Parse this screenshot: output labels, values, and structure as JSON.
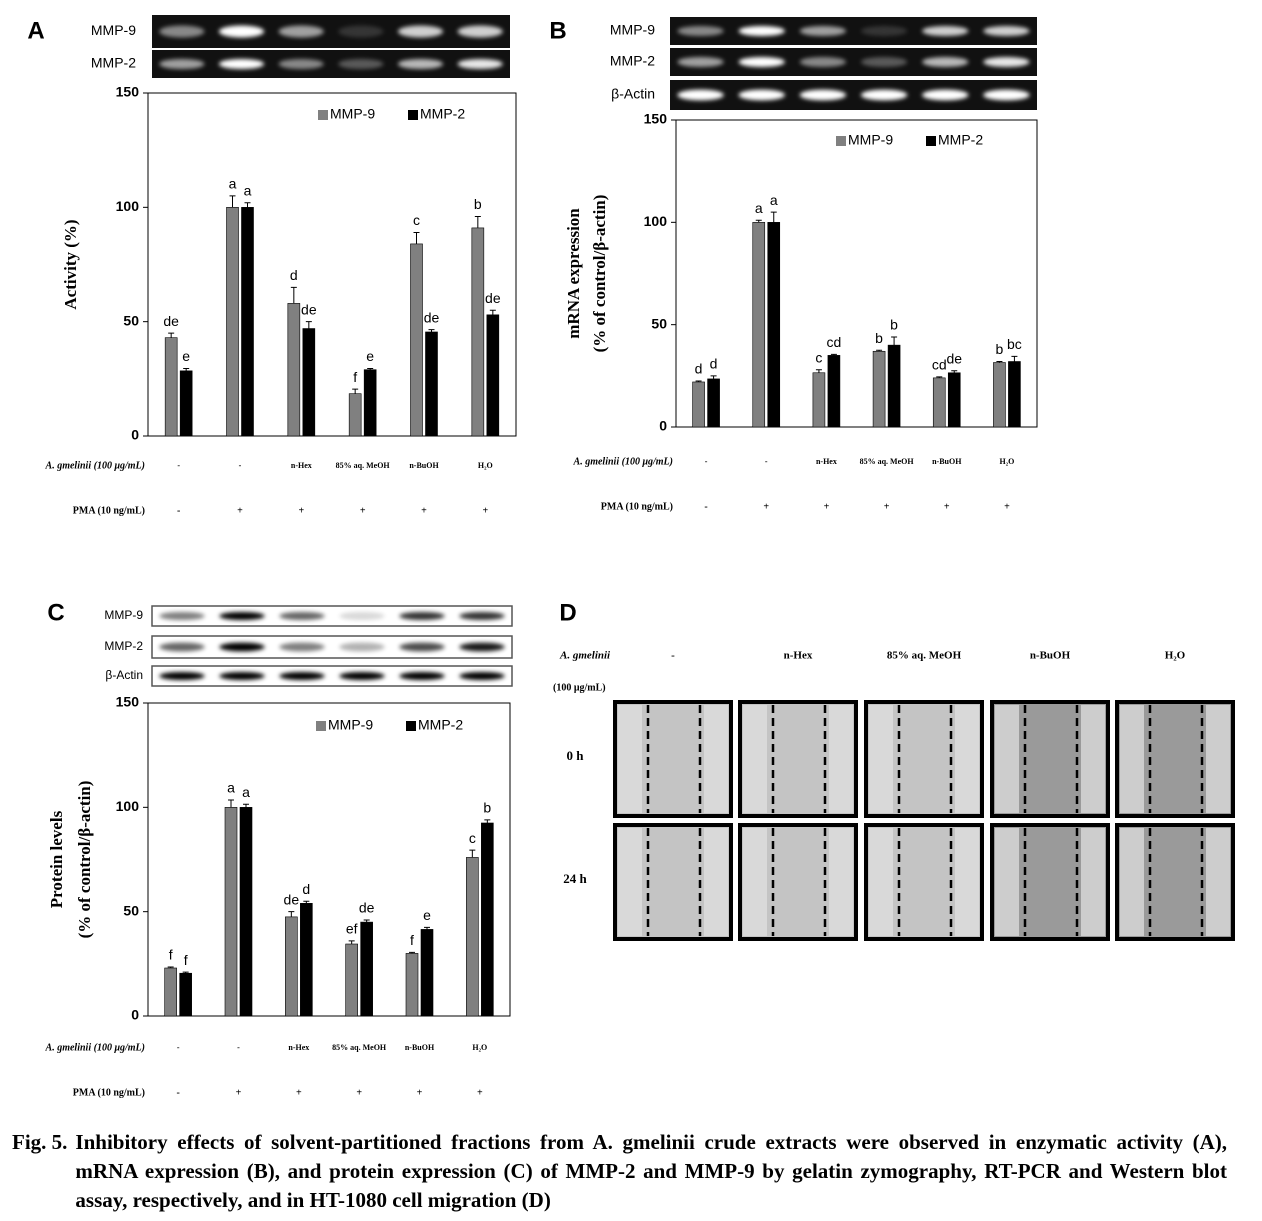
{
  "chart_data": [
    {
      "type": "bar",
      "panel_label": "A",
      "blot_labels": [
        "MMP-9",
        "MMP-2"
      ],
      "ylabel": [
        "Activity (%)"
      ],
      "ylim": [
        0,
        150
      ],
      "yticks": [
        0,
        50,
        100,
        150
      ],
      "legend_position": "upper right",
      "condition_labels": [
        "A. gmelinii (100 μg/mL)",
        "PMA (10 ng/mL)"
      ],
      "categories": [
        "-",
        "-",
        "n-Hex",
        "85% aq. MeOH",
        "n-BuOH",
        "H₂O"
      ],
      "pma": [
        "-",
        "+",
        "+",
        "+",
        "+",
        "+"
      ],
      "series": [
        {
          "name": "MMP-9",
          "color": "#808080",
          "values": [
            43,
            100,
            58,
            18.5,
            84,
            91
          ],
          "errors": [
            2,
            5,
            7,
            2,
            5,
            5
          ],
          "letters": [
            "de",
            "a",
            "d",
            "f",
            "c",
            "b"
          ]
        },
        {
          "name": "MMP-2",
          "color": "#000000",
          "values": [
            28.5,
            100,
            47,
            29,
            45.5,
            53
          ],
          "errors": [
            1,
            2,
            3,
            0.5,
            1,
            2
          ],
          "letters": [
            "e",
            "a",
            "de",
            "e",
            "de",
            "de"
          ]
        }
      ]
    },
    {
      "type": "bar",
      "panel_label": "B",
      "blot_labels": [
        "MMP-9",
        "MMP-2",
        "β-Actin"
      ],
      "ylabel": [
        "mRNA expression",
        "(% of control/β-actin)"
      ],
      "ylim": [
        0,
        150
      ],
      "yticks": [
        0,
        50,
        100,
        150
      ],
      "legend_position": "upper right",
      "condition_labels": [
        "A. gmelinii (100 μg/mL)",
        "PMA (10 ng/mL)"
      ],
      "categories": [
        "-",
        "-",
        "n-Hex",
        "85% aq. MeOH",
        "n-BuOH",
        "H₂O"
      ],
      "pma": [
        "-",
        "+",
        "+",
        "+",
        "+",
        "+"
      ],
      "series": [
        {
          "name": "MMP-9",
          "color": "#808080",
          "values": [
            22,
            100,
            26.5,
            37,
            24,
            31.5
          ],
          "errors": [
            0.5,
            1,
            1.5,
            0.5,
            0.5,
            0.5
          ],
          "letters": [
            "d",
            "a",
            "c",
            "b",
            "cd",
            "b"
          ]
        },
        {
          "name": "MMP-2",
          "color": "#000000",
          "values": [
            23.5,
            100,
            35,
            40,
            26.5,
            32
          ],
          "errors": [
            1.5,
            5,
            0.5,
            4,
            1,
            2.5
          ],
          "letters": [
            "d",
            "a",
            "cd",
            "b",
            "de",
            "bc"
          ]
        }
      ]
    },
    {
      "type": "bar",
      "panel_label": "C",
      "blot_labels": [
        "MMP-9",
        "MMP-2",
        "β-Actin"
      ],
      "ylabel": [
        "Protein levels",
        "(% of control/β-actin)"
      ],
      "ylim": [
        0,
        150
      ],
      "yticks": [
        0,
        50,
        100,
        150
      ],
      "legend_position": "upper right",
      "condition_labels": [
        "A. gmelinii (100 μg/mL)",
        "PMA (10 ng/mL)"
      ],
      "categories": [
        "-",
        "-",
        "n-Hex",
        "85% aq. MeOH",
        "n-BuOH",
        "H₂O"
      ],
      "pma": [
        "-",
        "+",
        "+",
        "+",
        "+",
        "+"
      ],
      "series": [
        {
          "name": "MMP-9",
          "color": "#808080",
          "values": [
            23,
            100,
            47.5,
            34.5,
            30,
            76
          ],
          "errors": [
            0.5,
            3.5,
            2.5,
            1.5,
            0.5,
            3.5
          ],
          "letters": [
            "f",
            "a",
            "de",
            "ef",
            "f",
            "c"
          ]
        },
        {
          "name": "MMP-2",
          "color": "#000000",
          "values": [
            20.5,
            100,
            54,
            45,
            41.5,
            92.5
          ],
          "errors": [
            0.5,
            1.5,
            1,
            1,
            1,
            1.5
          ],
          "letters": [
            "f",
            "a",
            "d",
            "de",
            "e",
            "b"
          ]
        }
      ]
    }
  ],
  "panel_d": {
    "label": "D",
    "row_header": [
      "A. gmelinii",
      "(100 μg/mL)"
    ],
    "columns": [
      "-",
      "n-Hex",
      "85% aq. MeOH",
      "n-BuOH",
      "H₂O"
    ],
    "rows": [
      "0 h",
      "24 h"
    ]
  },
  "caption": {
    "label": "Fig. 5.",
    "text": "Inhibitory effects of solvent-partitioned fractions from A. gmelinii crude extracts were observed in enzymatic activity (A), mRNA expression (B), and protein expression (C) of MMP-2 and MMP-9 by gelatin zymography, RT-PCR and Western blot assay, respectively, and in HT-1080 cell migration (D)"
  }
}
